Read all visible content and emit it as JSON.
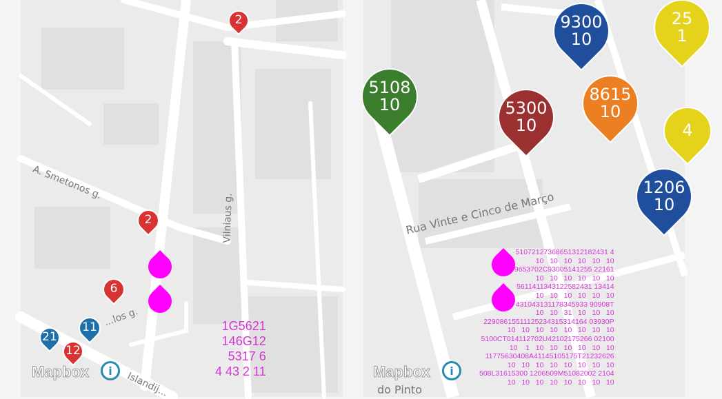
{
  "left_map": {
    "streets": [
      "A. Smetonos g.",
      "Vilniaus g.",
      "...los g.",
      "Islandij..."
    ],
    "markers": [
      {
        "label": "2",
        "color": "#d93232"
      },
      {
        "label": "2",
        "color": "#d93232"
      },
      {
        "label": "6",
        "color": "#d93232"
      },
      {
        "label": "11",
        "color": "#1f6fa8"
      },
      {
        "label": "21",
        "color": "#1f6fa8"
      },
      {
        "label": "12",
        "color": "#d93232"
      }
    ],
    "overlay_lines": [
      "1G5621",
      "146G12",
      "5317 6",
      "4 43 2 11"
    ],
    "attribution": "Mapbox",
    "info_icon": "i"
  },
  "right_map": {
    "streets": [
      "Rua Vinte e Cinco de Março",
      "do Pinto"
    ],
    "markers": [
      {
        "top": "5108",
        "bottom": "10",
        "color": "#3a7d2c"
      },
      {
        "top": "5300",
        "bottom": "10",
        "color": "#9b3030"
      },
      {
        "top": "9300",
        "bottom": "10",
        "color": "#1f4e9c"
      },
      {
        "top": "8615",
        "bottom": "10",
        "color": "#ec7f22"
      },
      {
        "top": "1206",
        "bottom": "10",
        "color": "#1f4e9c"
      },
      {
        "top": "25",
        "bottom": "1",
        "color": "#e5d31b"
      },
      {
        "top": "4",
        "bottom": "",
        "color": "#e5d31b"
      }
    ],
    "overlay_lines": [
      "51072127368651312182431 4",
      "10   10   10   10   10   10",
      "9653702C93005141255 22161",
      "10   10   10   10   10   10",
      "5611411343122582431 13414",
      "10   10   10   10   10   10",
      "431043131178345933 90908T",
      "10   10   31   10   10   10",
      "22908615511125234315314164 03930P",
      "10   10   10   10   10   10   10   10",
      "5100CT014112702U42102175266 02100",
      "10    1   10   10   10   10   10   10",
      "11775630408A41145105175T21232626",
      "10   10   10   10   10   10   10   10",
      "508L31615300 1206509M51082002 2104",
      "10   10   10   10   10   10   10   10"
    ],
    "attribution": "Mapbox",
    "info_icon": "i"
  }
}
